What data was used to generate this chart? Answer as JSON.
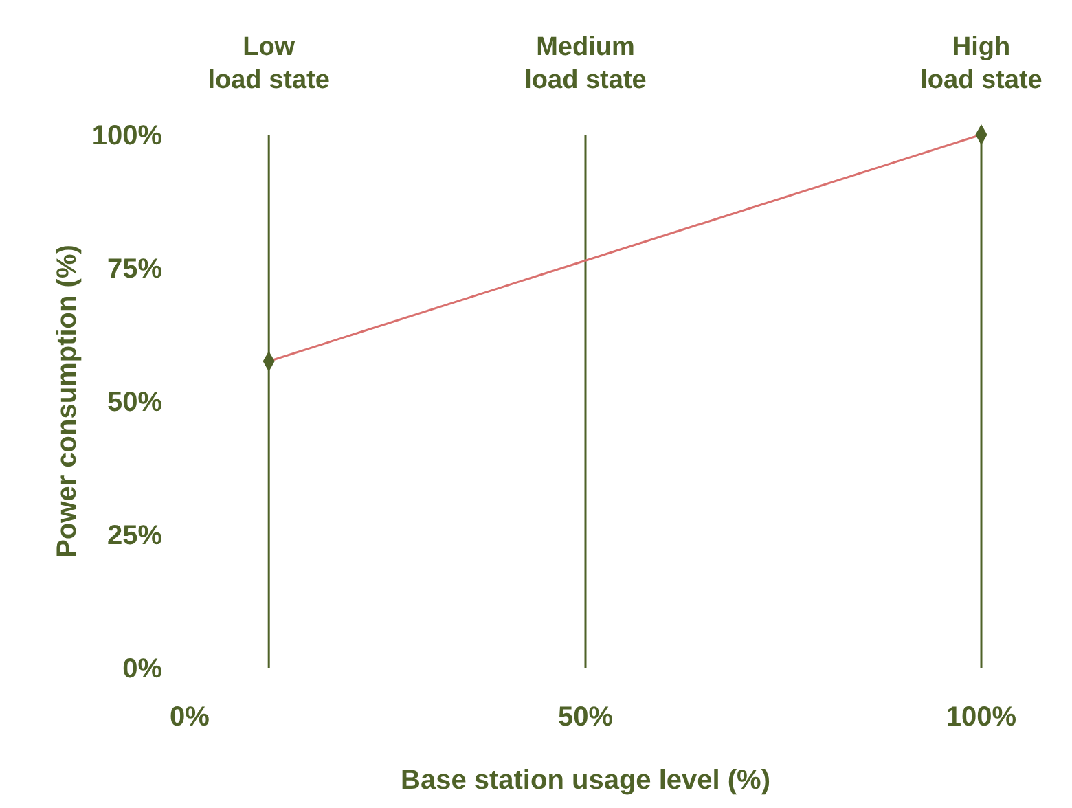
{
  "chart_data": {
    "type": "line",
    "xlabel": "Base station usage level (%)",
    "ylabel": "Power consumption (%)",
    "x": [
      10,
      100
    ],
    "series": [
      {
        "color": "#d9706e",
        "values": [
          57.5,
          100
        ],
        "marker": "none"
      },
      {
        "type": "scatter",
        "color": "#4f6228",
        "values": [
          57.5,
          100
        ],
        "marker": "diamond"
      }
    ],
    "xlim": [
      0,
      100
    ],
    "xticks": [
      {
        "value": 0,
        "label": "0%"
      },
      {
        "value": 50,
        "label": "50%"
      },
      {
        "value": 100,
        "label": "100%"
      }
    ],
    "ylim": [
      0,
      100
    ],
    "yticks": [
      {
        "value": 0,
        "label": "0%"
      },
      {
        "value": 25,
        "label": "25%"
      },
      {
        "value": 50,
        "label": "50%"
      },
      {
        "value": 75,
        "label": "75%"
      },
      {
        "value": 100,
        "label": "100%"
      }
    ],
    "ref_lines": [
      {
        "axis": "x",
        "value": 10,
        "label": "Low load state",
        "color": "#4f6228"
      },
      {
        "axis": "x",
        "value": 50,
        "label": "Medium load state",
        "color": "#4f6228"
      },
      {
        "axis": "x",
        "value": 100,
        "label": "High load state",
        "color": "#4f6228"
      }
    ],
    "grid": false
  }
}
